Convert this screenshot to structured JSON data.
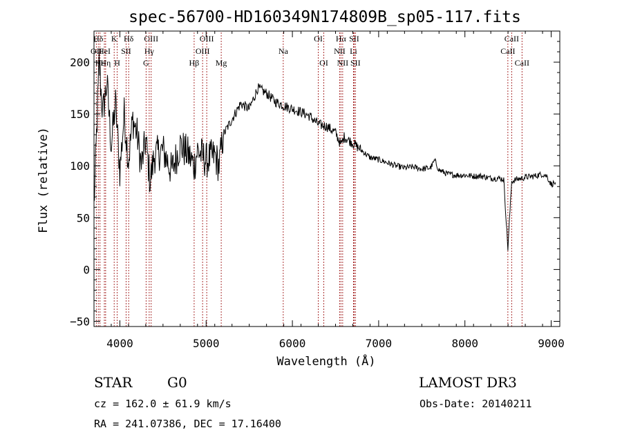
{
  "chart_data": {
    "type": "line",
    "title": "spec-56700-HD160349N174809B_sp05-117.fits",
    "xlabel": "Wavelength (Å)",
    "ylabel": "Flux (relative)",
    "xlim": [
      3700,
      9100
    ],
    "ylim": [
      -55,
      230
    ],
    "xticks": [
      4000,
      5000,
      6000,
      7000,
      8000,
      9000
    ],
    "yticks": [
      -50,
      0,
      50,
      100,
      150,
      200
    ],
    "xtick_labels": [
      "4000",
      "5000",
      "6000",
      "7000",
      "8000",
      "9000"
    ],
    "ytick_labels": [
      "−50",
      "0",
      "50",
      "100",
      "150",
      "200"
    ],
    "series": [
      {
        "name": "flux",
        "x": [
          3700,
          3760,
          3800,
          3850,
          3900,
          3950,
          4000,
          4050,
          4100,
          4150,
          4200,
          4250,
          4300,
          4350,
          4400,
          4500,
          4600,
          4700,
          4800,
          4861,
          4900,
          5000,
          5100,
          5150,
          5200,
          5300,
          5400,
          5500,
          5600,
          5700,
          5800,
          5900,
          6000,
          6100,
          6200,
          6300,
          6400,
          6500,
          6563,
          6600,
          6700,
          6800,
          6900,
          7000,
          7100,
          7200,
          7300,
          7400,
          7500,
          7600,
          7650,
          7700,
          7800,
          7900,
          8000,
          8100,
          8200,
          8300,
          8400,
          8450,
          8498,
          8542,
          8600,
          8662,
          8700,
          8800,
          8900,
          8950,
          9000,
          9050
        ],
        "y": [
          60,
          200,
          150,
          180,
          120,
          160,
          95,
          150,
          105,
          145,
          130,
          100,
          125,
          85,
          110,
          115,
          95,
          120,
          110,
          100,
          115,
          105,
          110,
          100,
          130,
          145,
          160,
          155,
          175,
          170,
          162,
          158,
          155,
          152,
          148,
          140,
          138,
          132,
          120,
          128,
          122,
          115,
          108,
          106,
          103,
          100,
          98,
          99,
          97,
          98,
          105,
          96,
          92,
          91,
          91,
          90,
          90,
          88,
          88,
          87,
          20,
          85,
          87,
          88,
          89,
          90,
          92,
          90,
          82,
          84
        ]
      }
    ],
    "lines": [
      {
        "name": "Hδ",
        "x": 3750,
        "row": 0
      },
      {
        "name": "OII",
        "x": 3727,
        "row": 1
      },
      {
        "name": "Hε",
        "x": 3770,
        "row": 2
      },
      {
        "name": "K",
        "x": 3934,
        "row": 0
      },
      {
        "name": "HeI",
        "x": 3820,
        "row": 1
      },
      {
        "name": "Hη",
        "x": 3835,
        "row": 2
      },
      {
        "name": "H",
        "x": 3969,
        "row": 2
      },
      {
        "name": "SII",
        "x": 4072,
        "row": 1
      },
      {
        "name": "Hδ",
        "x": 4102,
        "row": 0
      },
      {
        "name": "OIII",
        "x": 4363,
        "row": 0
      },
      {
        "name": "Hγ",
        "x": 4340,
        "row": 1
      },
      {
        "name": "G",
        "x": 4304,
        "row": 2
      },
      {
        "name": "Hβ",
        "x": 4861,
        "row": 2
      },
      {
        "name": "OIII",
        "x": 5007,
        "row": 0
      },
      {
        "name": "OIII",
        "x": 4959,
        "row": 1
      },
      {
        "name": "Mg",
        "x": 5175,
        "row": 2
      },
      {
        "name": "Na",
        "x": 5894,
        "row": 1
      },
      {
        "name": "OI",
        "x": 6300,
        "row": 0
      },
      {
        "name": "OI",
        "x": 6364,
        "row": 2
      },
      {
        "name": "Hα",
        "x": 6563,
        "row": 0
      },
      {
        "name": "NII",
        "x": 6548,
        "row": 1
      },
      {
        "name": "NII",
        "x": 6583,
        "row": 2
      },
      {
        "name": "SII",
        "x": 6716,
        "row": 0
      },
      {
        "name": "Li",
        "x": 6708,
        "row": 1
      },
      {
        "name": "SII",
        "x": 6731,
        "row": 2
      },
      {
        "name": "CaII",
        "x": 8542,
        "row": 0
      },
      {
        "name": "CaII",
        "x": 8498,
        "row": 1
      },
      {
        "name": "CaII",
        "x": 8662,
        "row": 2
      }
    ],
    "grid": false,
    "legend": "none"
  },
  "info": {
    "type_label": "STAR",
    "subclass": "G0",
    "survey": "LAMOST DR3",
    "velocity": "cz = 162.0 ± 61.9 km/s",
    "obs_date": "Obs-Date: 20140211",
    "coords": "RA = 241.07386, DEC =  17.16400"
  }
}
